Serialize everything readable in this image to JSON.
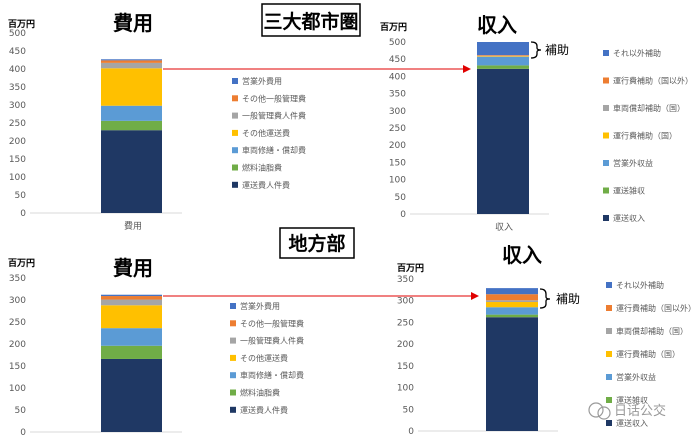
{
  "labels": {
    "top_region": "三大都市圏",
    "bottom_region": "地方部",
    "unit": "百万円",
    "cost_title": "費用",
    "income_title": "収入",
    "cost_category": "費用",
    "income_category": "収入",
    "subsidy": "補助",
    "watermark": "日话公交"
  },
  "colors": {
    "cost": {
      "運送費人件費": "#1f3864",
      "燃料油脂費": "#70ad47",
      "車両修繕・償却費": "#5b9bd5",
      "その他運送費": "#ffc000",
      "一般管理費人件費": "#a5a5a5",
      "その他一般管理費": "#ed7d31",
      "営業外費用": "#4472c4"
    },
    "income": {
      "運送収入": "#1f3864",
      "運送雑収": "#70ad47",
      "営業外収益": "#5b9bd5",
      "運行費補助（国）": "#ffc000",
      "車両償却補助（国）": "#a5a5a5",
      "運行費補助（国以外）": "#ed7d31",
      "それ以外補助": "#4472c4"
    },
    "arrow": "#e00000",
    "axis_text": "#595959",
    "grid": "#d9d9d9"
  },
  "chart_data": [
    {
      "type": "bar",
      "stacked": true,
      "region": "三大都市圏",
      "title": "費用",
      "ylabel": "百万円",
      "ylim": [
        0,
        500
      ],
      "yticks": [
        0,
        50,
        100,
        150,
        200,
        250,
        300,
        350,
        400,
        450,
        500
      ],
      "categories": [
        "費用"
      ],
      "series": [
        {
          "name": "運送費人件費",
          "values": [
            230
          ]
        },
        {
          "name": "燃料油脂費",
          "values": [
            26
          ]
        },
        {
          "name": "車両修繕・償却費",
          "values": [
            42
          ]
        },
        {
          "name": "その他運送費",
          "values": [
            104
          ]
        },
        {
          "name": "一般管理費人件費",
          "values": [
            15
          ]
        },
        {
          "name": "その他一般管理費",
          "values": [
            7
          ]
        },
        {
          "name": "営業外費用",
          "values": [
            3
          ]
        }
      ],
      "legend": [
        "営業外費用",
        "その他一般管理費",
        "一般管理費人件費",
        "その他運送費",
        "車両修繕・償却費",
        "燃料油脂費",
        "運送費人件費"
      ],
      "legend_position": "right"
    },
    {
      "type": "bar",
      "stacked": true,
      "region": "三大都市圏",
      "title": "収入",
      "ylabel": "百万円",
      "ylim": [
        0,
        500
      ],
      "yticks": [
        0,
        50,
        100,
        150,
        200,
        250,
        300,
        350,
        400,
        450,
        500
      ],
      "categories": [
        "収入"
      ],
      "series": [
        {
          "name": "運送収入",
          "values": [
            422
          ]
        },
        {
          "name": "運送雑収",
          "values": [
            10
          ]
        },
        {
          "name": "営業外収益",
          "values": [
            25
          ]
        },
        {
          "name": "運行費補助（国）",
          "values": [
            2
          ]
        },
        {
          "name": "車両償却補助（国）",
          "values": [
            1
          ]
        },
        {
          "name": "運行費補助（国以外）",
          "values": [
            2
          ]
        },
        {
          "name": "それ以外補助",
          "values": [
            38
          ]
        }
      ],
      "legend": [
        "それ以外補助",
        "運行費補助（国以外）",
        "車両償却補助（国）",
        "運行費補助（国）",
        "営業外収益",
        "運送雑収",
        "運送収入"
      ],
      "legend_position": "right"
    },
    {
      "type": "bar",
      "stacked": true,
      "region": "地方部",
      "title": "費用",
      "ylabel": "百万円",
      "ylim": [
        0,
        350
      ],
      "yticks": [
        0,
        50,
        100,
        150,
        200,
        250,
        300,
        350
      ],
      "categories": [
        "費用"
      ],
      "series": [
        {
          "name": "運送費人件費",
          "values": [
            166
          ]
        },
        {
          "name": "燃料油脂費",
          "values": [
            30
          ]
        },
        {
          "name": "車両修繕・償却費",
          "values": [
            40
          ]
        },
        {
          "name": "その他運送費",
          "values": [
            52
          ]
        },
        {
          "name": "一般管理費人件費",
          "values": [
            13
          ]
        },
        {
          "name": "その他一般管理費",
          "values": [
            8
          ]
        },
        {
          "name": "営業外費用",
          "values": [
            3
          ]
        }
      ],
      "legend": [
        "営業外費用",
        "その他一般管理費",
        "一般管理費人件費",
        "その他運送費",
        "車両修繕・償却費",
        "燃料油脂費",
        "運送費人件費"
      ],
      "legend_position": "right"
    },
    {
      "type": "bar",
      "stacked": true,
      "region": "地方部",
      "title": "収入",
      "ylabel": "百万円",
      "ylim": [
        0,
        350
      ],
      "yticks": [
        0,
        50,
        100,
        150,
        200,
        250,
        300,
        350
      ],
      "categories": [
        "収入"
      ],
      "series": [
        {
          "name": "運送収入",
          "values": [
            262
          ]
        },
        {
          "name": "運送雑収",
          "values": [
            6
          ]
        },
        {
          "name": "営業外収益",
          "values": [
            17
          ]
        },
        {
          "name": "運行費補助（国）",
          "values": [
            12
          ]
        },
        {
          "name": "車両償却補助（国）",
          "values": [
            4
          ]
        },
        {
          "name": "運行費補助（国以外）",
          "values": [
            14
          ]
        },
        {
          "name": "それ以外補助",
          "values": [
            14
          ]
        }
      ],
      "legend": [
        "それ以外補助",
        "運行費補助（国以外）",
        "車両償却補助（国）",
        "運行費補助（国）",
        "営業外収益",
        "運送雑収",
        "運送収入"
      ],
      "legend_position": "right"
    }
  ]
}
